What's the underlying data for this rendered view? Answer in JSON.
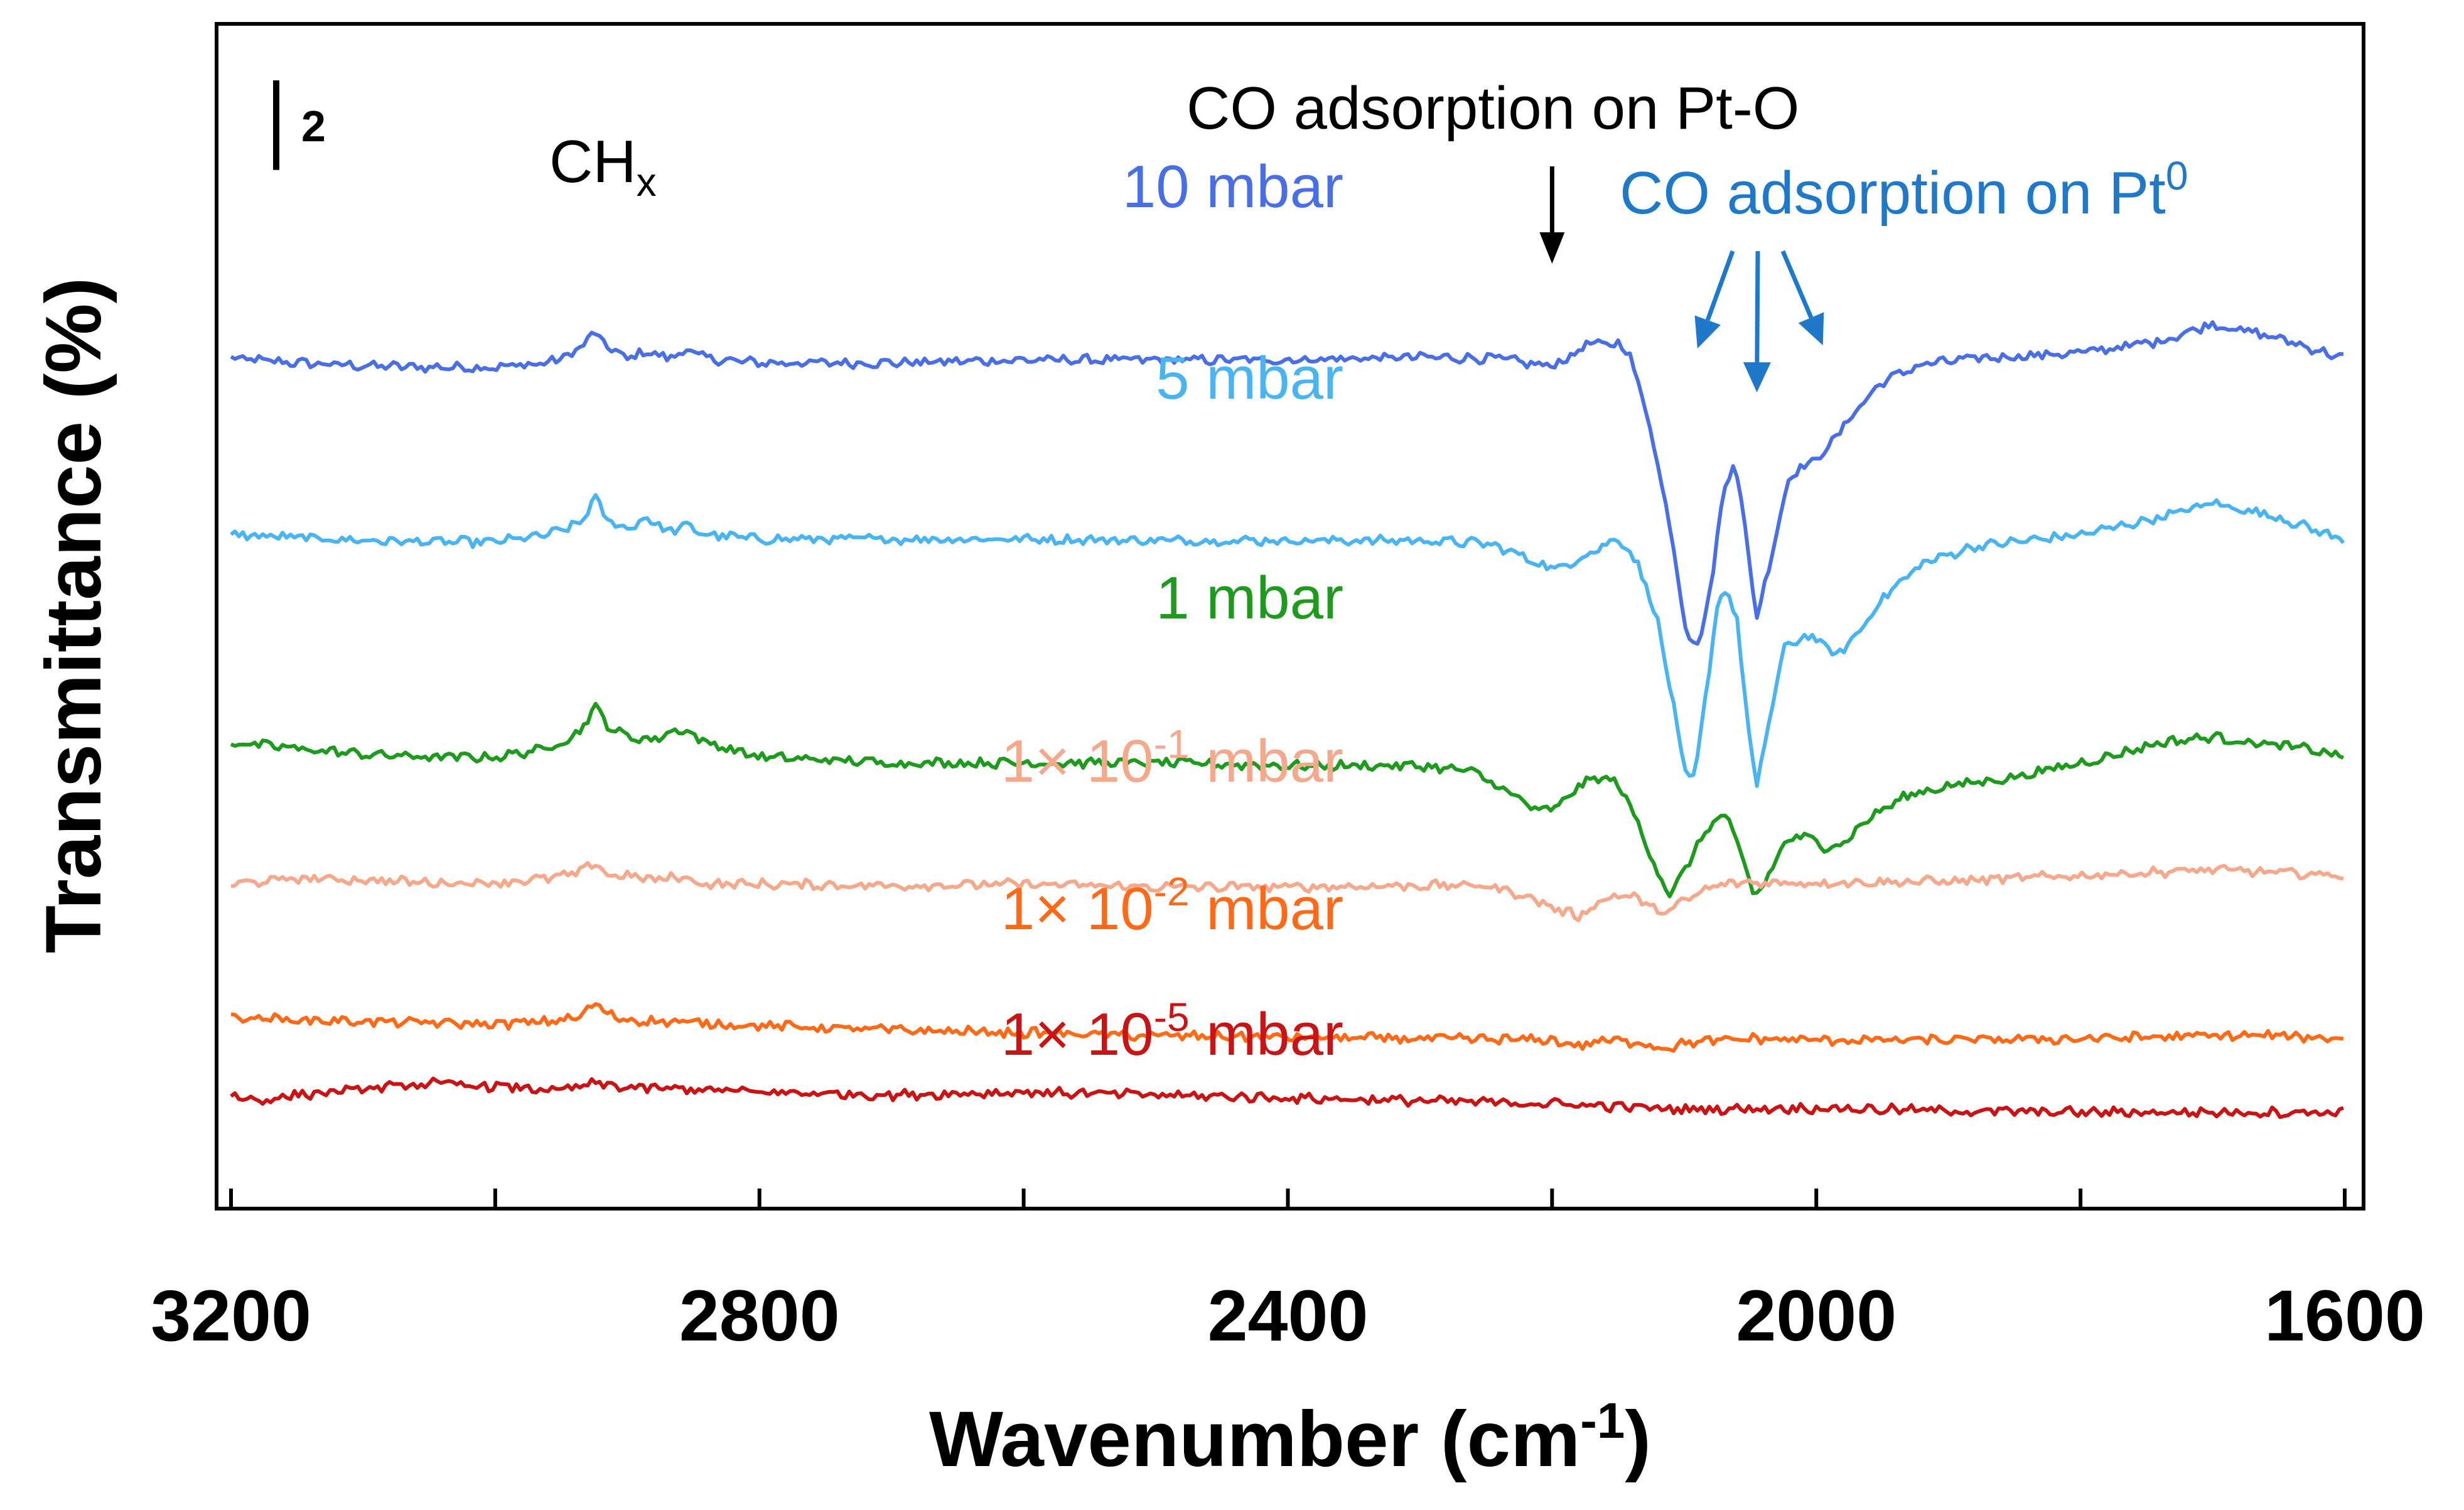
{
  "chart_data": {
    "type": "line",
    "title": "",
    "xlabel_main": "Wavenumber (cm",
    "xlabel_sup": "-1",
    "xlabel_end": ")",
    "ylabel": "Transmittance (%)",
    "xlim": [
      3200,
      1600
    ],
    "x_ticks": [
      3200,
      3000,
      2800,
      2600,
      2400,
      2200,
      2000,
      1800,
      1600
    ],
    "x_tick_labels": [
      "3200",
      "2800",
      "2400",
      "2000",
      "1600"
    ],
    "grid": false,
    "scale_bar": {
      "label": "2",
      "value": 2,
      "unit": "% transmittance"
    },
    "annotations": [
      {
        "id": "chx",
        "text_main": "CH",
        "text_sub": "x",
        "x": 2920,
        "color": "#000000"
      },
      {
        "id": "pt_o",
        "text": "CO adsorption on Pt-O",
        "arrow_x": [
          2200
        ],
        "color": "#000000"
      },
      {
        "id": "pt_0",
        "text_main": "CO adsorption on Pt",
        "text_sup": "0",
        "arrow_x": [
          2090,
          2045,
          1995
        ],
        "color": "#1f78c8"
      }
    ],
    "series": [
      {
        "name": "10 mbar",
        "label_main": "10 mbar",
        "label_sup": "",
        "label_end": "",
        "color": "#4a6ee3",
        "offset": 26.5,
        "points": [
          [
            3200,
            0
          ],
          [
            3150,
            -0.15
          ],
          [
            3100,
            -0.25
          ],
          [
            3050,
            -0.3
          ],
          [
            3000,
            -0.3
          ],
          [
            2960,
            -0.15
          ],
          [
            2940,
            0.2
          ],
          [
            2925,
            0.9
          ],
          [
            2915,
            0.4
          ],
          [
            2900,
            0.0
          ],
          [
            2885,
            0.25
          ],
          [
            2870,
            0.0
          ],
          [
            2855,
            0.3
          ],
          [
            2840,
            0.0
          ],
          [
            2800,
            -0.15
          ],
          [
            2700,
            -0.15
          ],
          [
            2600,
            -0.05
          ],
          [
            2500,
            -0.05
          ],
          [
            2400,
            -0.05
          ],
          [
            2300,
            0.05
          ],
          [
            2240,
            0.0
          ],
          [
            2215,
            -0.2
          ],
          [
            2200,
            -0.25
          ],
          [
            2185,
            0.1
          ],
          [
            2170,
            0.6
          ],
          [
            2160,
            0.4
          ],
          [
            2150,
            0.6
          ],
          [
            2140,
            0.0
          ],
          [
            2125,
            -2.5
          ],
          [
            2110,
            -6.0
          ],
          [
            2098,
            -9.5
          ],
          [
            2090,
            -10.0
          ],
          [
            2080,
            -8.0
          ],
          [
            2070,
            -4.5
          ],
          [
            2062,
            -3.5
          ],
          [
            2055,
            -5.5
          ],
          [
            2045,
            -9.0
          ],
          [
            2035,
            -7.0
          ],
          [
            2020,
            -4.0
          ],
          [
            2000,
            -3.5
          ],
          [
            1990,
            -3.0
          ],
          [
            1970,
            -1.8
          ],
          [
            1950,
            -0.8
          ],
          [
            1920,
            -0.2
          ],
          [
            1880,
            0.0
          ],
          [
            1800,
            0.2
          ],
          [
            1740,
            0.6
          ],
          [
            1700,
            1.2
          ],
          [
            1680,
            1.0
          ],
          [
            1650,
            0.7
          ],
          [
            1600,
            0.0
          ]
        ]
      },
      {
        "name": "5 mbar",
        "label_main": "5 mbar",
        "label_sup": "",
        "label_end": "",
        "color": "#4ab4f0",
        "offset": 20.4,
        "points": [
          [
            3200,
            0
          ],
          [
            3150,
            -0.1
          ],
          [
            3100,
            -0.2
          ],
          [
            3050,
            -0.25
          ],
          [
            3000,
            -0.25
          ],
          [
            2960,
            0.0
          ],
          [
            2935,
            0.4
          ],
          [
            2925,
            1.3
          ],
          [
            2915,
            0.5
          ],
          [
            2900,
            0.2
          ],
          [
            2885,
            0.6
          ],
          [
            2870,
            0.1
          ],
          [
            2855,
            0.3
          ],
          [
            2840,
            0.0
          ],
          [
            2800,
            -0.15
          ],
          [
            2700,
            -0.15
          ],
          [
            2600,
            -0.15
          ],
          [
            2500,
            -0.2
          ],
          [
            2400,
            -0.2
          ],
          [
            2300,
            -0.2
          ],
          [
            2250,
            -0.3
          ],
          [
            2230,
            -0.6
          ],
          [
            2210,
            -1.0
          ],
          [
            2195,
            -1.2
          ],
          [
            2180,
            -0.8
          ],
          [
            2165,
            -0.5
          ],
          [
            2150,
            -0.1
          ],
          [
            2135,
            -1.0
          ],
          [
            2120,
            -3.0
          ],
          [
            2108,
            -6.0
          ],
          [
            2100,
            -8.2
          ],
          [
            2092,
            -8.5
          ],
          [
            2085,
            -6.0
          ],
          [
            2075,
            -2.5
          ],
          [
            2068,
            -1.8
          ],
          [
            2060,
            -3.0
          ],
          [
            2052,
            -6.5
          ],
          [
            2045,
            -8.8
          ],
          [
            2038,
            -7.0
          ],
          [
            2025,
            -4.0
          ],
          [
            2010,
            -3.5
          ],
          [
            2000,
            -3.6
          ],
          [
            1985,
            -4.2
          ],
          [
            1970,
            -3.5
          ],
          [
            1950,
            -2.2
          ],
          [
            1920,
            -1.0
          ],
          [
            1880,
            -0.4
          ],
          [
            1800,
            0.0
          ],
          [
            1740,
            0.6
          ],
          [
            1700,
            1.1
          ],
          [
            1680,
            0.9
          ],
          [
            1650,
            0.6
          ],
          [
            1600,
            -0.2
          ]
        ]
      },
      {
        "name": "1 mbar",
        "label_main": "1 mbar",
        "label_sup": "",
        "label_end": "",
        "color": "#1e9a1e",
        "offset": 13.2,
        "points": [
          [
            3200,
            0
          ],
          [
            3150,
            -0.2
          ],
          [
            3100,
            -0.4
          ],
          [
            3050,
            -0.5
          ],
          [
            3000,
            -0.5
          ],
          [
            2960,
            -0.2
          ],
          [
            2935,
            0.4
          ],
          [
            2925,
            1.3
          ],
          [
            2915,
            0.6
          ],
          [
            2900,
            0.2
          ],
          [
            2880,
            0.1
          ],
          [
            2860,
            0.5
          ],
          [
            2840,
            0.0
          ],
          [
            2800,
            -0.5
          ],
          [
            2700,
            -0.7
          ],
          [
            2600,
            -0.7
          ],
          [
            2500,
            -0.7
          ],
          [
            2400,
            -0.8
          ],
          [
            2300,
            -0.8
          ],
          [
            2260,
            -1.0
          ],
          [
            2230,
            -1.8
          ],
          [
            2210,
            -2.4
          ],
          [
            2195,
            -2.2
          ],
          [
            2180,
            -1.5
          ],
          [
            2165,
            -1.2
          ],
          [
            2150,
            -1.4
          ],
          [
            2135,
            -2.8
          ],
          [
            2120,
            -4.5
          ],
          [
            2110,
            -5.3
          ],
          [
            2095,
            -4.0
          ],
          [
            2080,
            -2.8
          ],
          [
            2068,
            -2.5
          ],
          [
            2060,
            -3.5
          ],
          [
            2048,
            -5.2
          ],
          [
            2040,
            -5.0
          ],
          [
            2025,
            -3.5
          ],
          [
            2010,
            -3.2
          ],
          [
            1995,
            -3.6
          ],
          [
            1980,
            -3.5
          ],
          [
            1960,
            -2.6
          ],
          [
            1930,
            -1.8
          ],
          [
            1900,
            -1.5
          ],
          [
            1850,
            -1.2
          ],
          [
            1780,
            -0.5
          ],
          [
            1740,
            0.0
          ],
          [
            1700,
            0.2
          ],
          [
            1670,
            0.0
          ],
          [
            1630,
            -0.2
          ],
          [
            1600,
            -0.5
          ]
        ]
      },
      {
        "name": "1× 10-1 mbar",
        "label_main": "1× 10",
        "label_sup": "-1",
        "label_end": " mbar",
        "color": "#f5a98c",
        "offset": 8.3,
        "points": [
          [
            3200,
            0
          ],
          [
            3150,
            0.2
          ],
          [
            3100,
            0.15
          ],
          [
            3050,
            0.05
          ],
          [
            3000,
            0.05
          ],
          [
            2960,
            0.2
          ],
          [
            2935,
            0.4
          ],
          [
            2925,
            0.8
          ],
          [
            2915,
            0.3
          ],
          [
            2900,
            0.3
          ],
          [
            2880,
            0.15
          ],
          [
            2860,
            0.25
          ],
          [
            2840,
            0.0
          ],
          [
            2800,
            0.0
          ],
          [
            2700,
            -0.05
          ],
          [
            2600,
            0.0
          ],
          [
            2500,
            -0.1
          ],
          [
            2400,
            -0.1
          ],
          [
            2300,
            -0.05
          ],
          [
            2250,
            -0.05
          ],
          [
            2220,
            -0.4
          ],
          [
            2195,
            -0.9
          ],
          [
            2180,
            -1.1
          ],
          [
            2170,
            -0.8
          ],
          [
            2160,
            -0.5
          ],
          [
            2150,
            -0.4
          ],
          [
            2140,
            -0.4
          ],
          [
            2125,
            -0.8
          ],
          [
            2115,
            -1.0
          ],
          [
            2100,
            -0.6
          ],
          [
            2080,
            -0.1
          ],
          [
            2060,
            0.05
          ],
          [
            2000,
            0.05
          ],
          [
            1900,
            0.1
          ],
          [
            1800,
            0.3
          ],
          [
            1750,
            0.4
          ],
          [
            1700,
            0.5
          ],
          [
            1650,
            0.4
          ],
          [
            1600,
            0.3
          ]
        ]
      },
      {
        "name": "1× 10-2 mbar",
        "label_main": "1× 10",
        "label_sup": "-2",
        "label_end": " mbar",
        "color": "#ff6a19",
        "offset": 3.7,
        "points": [
          [
            3200,
            0
          ],
          [
            3150,
            -0.1
          ],
          [
            3100,
            -0.15
          ],
          [
            3050,
            -0.2
          ],
          [
            3000,
            -0.25
          ],
          [
            2960,
            -0.15
          ],
          [
            2935,
            0.0
          ],
          [
            2925,
            0.5
          ],
          [
            2915,
            0.1
          ],
          [
            2900,
            -0.1
          ],
          [
            2850,
            -0.2
          ],
          [
            2800,
            -0.3
          ],
          [
            2700,
            -0.45
          ],
          [
            2600,
            -0.55
          ],
          [
            2500,
            -0.65
          ],
          [
            2400,
            -0.7
          ],
          [
            2300,
            -0.75
          ],
          [
            2200,
            -0.8
          ],
          [
            2180,
            -1.0
          ],
          [
            2160,
            -0.8
          ],
          [
            2130,
            -0.9
          ],
          [
            2115,
            -1.1
          ],
          [
            2100,
            -0.9
          ],
          [
            2050,
            -0.75
          ],
          [
            2000,
            -0.8
          ],
          [
            1900,
            -0.8
          ],
          [
            1800,
            -0.75
          ],
          [
            1700,
            -0.65
          ],
          [
            1650,
            -0.65
          ],
          [
            1600,
            -0.75
          ]
        ]
      },
      {
        "name": "1× 10-5 mbar",
        "label_main": "1× 10",
        "label_sup": "-5",
        "label_end": " mbar",
        "color": "#c81414",
        "offset": 1.0,
        "points": [
          [
            3200,
            0
          ],
          [
            3180,
            -0.2
          ],
          [
            3150,
            0.0
          ],
          [
            3100,
            0.2
          ],
          [
            3050,
            0.4
          ],
          [
            3000,
            0.3
          ],
          [
            2950,
            0.15
          ],
          [
            2925,
            0.4
          ],
          [
            2900,
            0.25
          ],
          [
            2850,
            0.2
          ],
          [
            2800,
            0.1
          ],
          [
            2700,
            0.0
          ],
          [
            2600,
            0.1
          ],
          [
            2500,
            0.0
          ],
          [
            2400,
            -0.1
          ],
          [
            2300,
            -0.2
          ],
          [
            2200,
            -0.3
          ],
          [
            2100,
            -0.5
          ],
          [
            2000,
            -0.45
          ],
          [
            1900,
            -0.55
          ],
          [
            1800,
            -0.6
          ],
          [
            1700,
            -0.6
          ],
          [
            1600,
            -0.6
          ]
        ]
      }
    ]
  }
}
